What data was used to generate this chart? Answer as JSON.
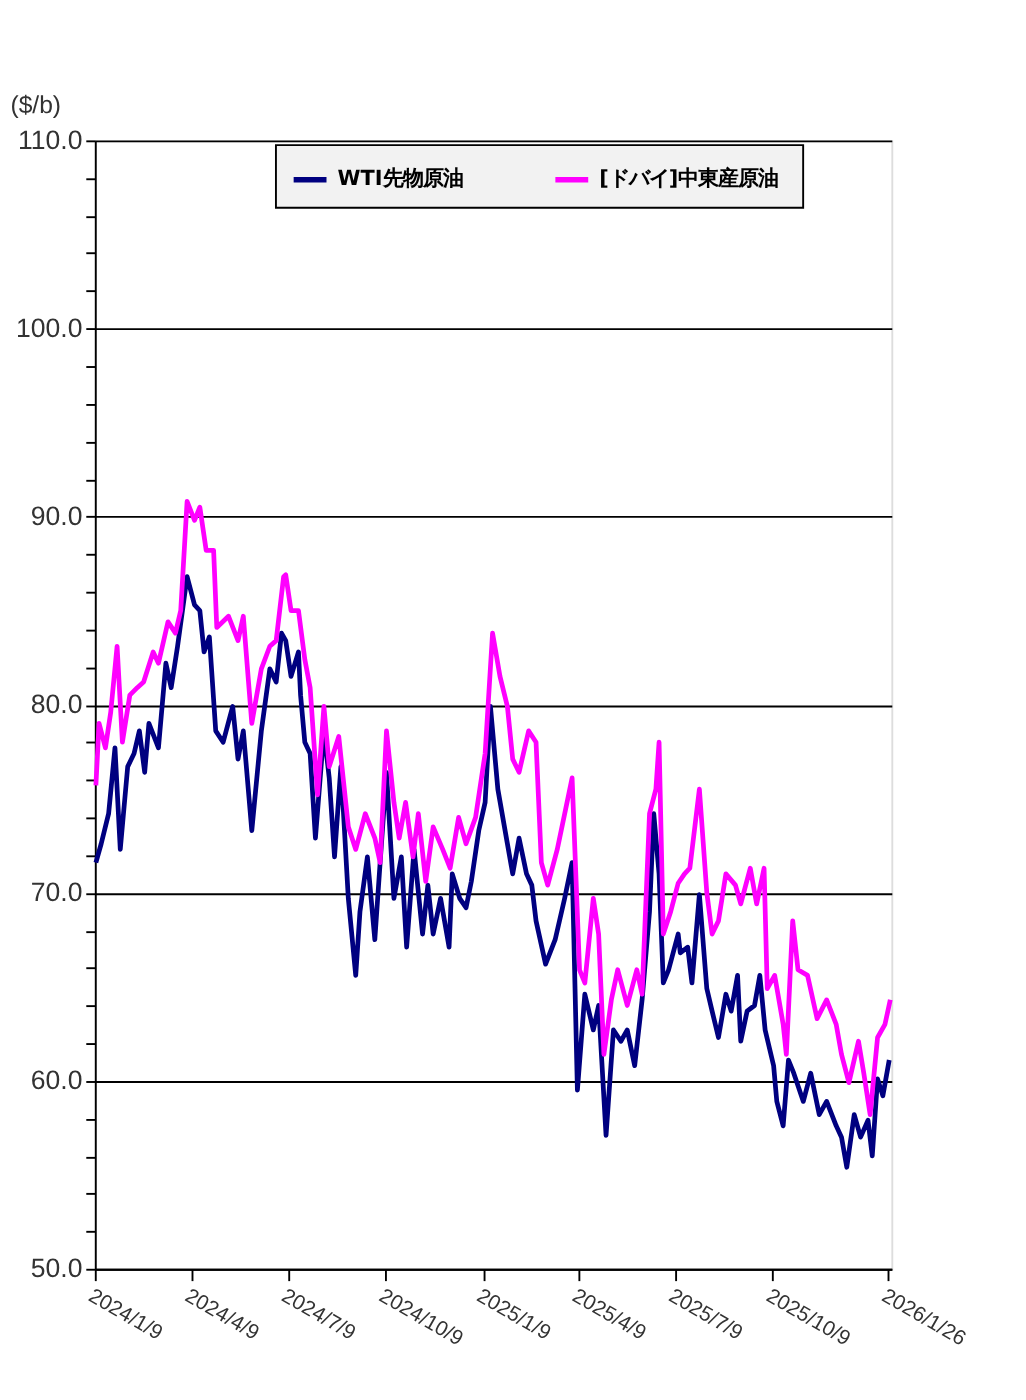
{
  "chart_data": {
    "type": "line",
    "ylabel": "($/b)",
    "legend": "top",
    "grid": "y",
    "marker": "none",
    "line_style": "solid",
    "ylim": [
      50,
      110
    ],
    "yticks": [
      {
        "value": 50,
        "label": "50.0"
      },
      {
        "value": 52,
        "label": null
      },
      {
        "value": 54,
        "label": null
      },
      {
        "value": 56,
        "label": null
      },
      {
        "value": 58,
        "label": null
      },
      {
        "value": 60,
        "label": "60.0"
      },
      {
        "value": 62,
        "label": null
      },
      {
        "value": 64,
        "label": null
      },
      {
        "value": 66,
        "label": null
      },
      {
        "value": 68,
        "label": null
      },
      {
        "value": 70,
        "label": "70.0"
      },
      {
        "value": 72,
        "label": null
      },
      {
        "value": 74,
        "label": null
      },
      {
        "value": 76,
        "label": null
      },
      {
        "value": 78,
        "label": null
      },
      {
        "value": 80,
        "label": "80.0"
      },
      {
        "value": 82,
        "label": null
      },
      {
        "value": 84,
        "label": null
      },
      {
        "value": 86,
        "label": null
      },
      {
        "value": 88,
        "label": null
      },
      {
        "value": 90,
        "label": "90.0"
      },
      {
        "value": 92,
        "label": null
      },
      {
        "value": 94,
        "label": null
      },
      {
        "value": 96,
        "label": null
      },
      {
        "value": 98,
        "label": null
      },
      {
        "value": 100,
        "label": "100.0"
      },
      {
        "value": 102,
        "label": null
      },
      {
        "value": 104,
        "label": null
      },
      {
        "value": 106,
        "label": null
      },
      {
        "value": 108,
        "label": null
      },
      {
        "value": 110,
        "label": "110.0"
      }
    ],
    "xlim": [
      "2024-01-09",
      "2026-01-29"
    ],
    "xticks": [
      {
        "value": "2024-01-09",
        "label": "2024/1/9"
      },
      {
        "value": "2024-04-09",
        "label": "2024/4/9"
      },
      {
        "value": "2024-07-09",
        "label": "2024/7/9"
      },
      {
        "value": "2024-10-09",
        "label": "2024/10/9"
      },
      {
        "value": "2025-01-09",
        "label": "2025/1/9"
      },
      {
        "value": "2025-04-09",
        "label": "2025/4/9"
      },
      {
        "value": "2025-07-09",
        "label": "2025/7/9"
      },
      {
        "value": "2025-10-09",
        "label": "2025/10/9"
      },
      {
        "value": "2026-01-26",
        "label": "2026/1/26"
      }
    ],
    "series": [
      {
        "name": "WTI先物原油",
        "color": "#000080",
        "x": [
          "2024-01-10",
          "2024-01-15",
          "2024-01-22",
          "2024-01-28",
          "2024-02-02",
          "2024-02-09",
          "2024-02-15",
          "2024-02-20",
          "2024-02-25",
          "2024-02-29",
          "2024-03-09",
          "2024-03-16",
          "2024-03-21",
          "2024-03-27",
          "2024-04-05",
          "2024-04-12",
          "2024-04-17",
          "2024-04-21",
          "2024-04-26",
          "2024-05-02",
          "2024-05-09",
          "2024-05-18",
          "2024-05-23",
          "2024-05-28",
          "2024-06-05",
          "2024-06-14",
          "2024-06-22",
          "2024-06-28",
          "2024-07-03",
          "2024-07-07",
          "2024-07-12",
          "2024-07-19",
          "2024-07-21",
          "2024-07-25",
          "2024-07-30",
          "2024-08-04",
          "2024-08-12",
          "2024-08-17",
          "2024-08-22",
          "2024-08-28",
          "2024-09-04",
          "2024-09-11",
          "2024-09-15",
          "2024-09-22",
          "2024-09-29",
          "2024-10-04",
          "2024-10-10",
          "2024-10-13",
          "2024-10-17",
          "2024-10-24",
          "2024-10-29",
          "2024-11-05",
          "2024-11-13",
          "2024-11-18",
          "2024-11-23",
          "2024-11-30",
          "2024-12-08",
          "2024-12-11",
          "2024-12-18",
          "2024-12-24",
          "2024-12-29",
          "2025-01-05",
          "2025-01-11",
          "2025-01-16",
          "2025-01-23",
          "2025-02-01",
          "2025-02-06",
          "2025-02-12",
          "2025-02-19",
          "2025-02-24",
          "2025-02-28",
          "2025-03-09",
          "2025-03-18",
          "2025-03-27",
          "2025-04-03",
          "2025-04-08",
          "2025-04-15",
          "2025-04-23",
          "2025-04-28",
          "2025-05-05",
          "2025-05-12",
          "2025-05-19",
          "2025-05-25",
          "2025-06-01",
          "2025-06-08",
          "2025-06-15",
          "2025-06-19",
          "2025-06-24",
          "2025-06-28",
          "2025-07-03",
          "2025-07-12",
          "2025-07-14",
          "2025-07-21",
          "2025-07-25",
          "2025-08-01",
          "2025-08-08",
          "2025-08-13",
          "2025-08-19",
          "2025-08-26",
          "2025-08-31",
          "2025-09-06",
          "2025-09-09",
          "2025-09-15",
          "2025-09-22",
          "2025-09-27",
          "2025-10-02",
          "2025-10-10",
          "2025-10-13",
          "2025-10-19",
          "2025-10-24",
          "2025-10-29",
          "2025-11-07",
          "2025-11-14",
          "2025-11-22",
          "2025-11-29",
          "2025-12-08",
          "2025-12-13",
          "2025-12-18",
          "2025-12-25",
          "2025-12-31",
          "2026-01-07",
          "2026-01-11",
          "2026-01-16",
          "2026-01-21",
          "2026-01-27"
        ],
        "values": [
          71.6,
          72.6,
          74.2,
          77.7,
          72.3,
          76.7,
          77.4,
          78.6,
          76.4,
          79.0,
          77.7,
          82.2,
          80.9,
          83.1,
          86.8,
          85.3,
          85.0,
          82.8,
          83.6,
          78.6,
          78.0,
          79.9,
          77.1,
          78.6,
          73.3,
          78.6,
          81.9,
          81.2,
          83.8,
          83.4,
          81.5,
          82.8,
          80.5,
          78.0,
          77.4,
          72.9,
          78.6,
          76.1,
          71.9,
          76.7,
          69.7,
          65.6,
          69.0,
          71.9,
          67.5,
          71.6,
          76.4,
          73.5,
          69.7,
          71.9,
          67.1,
          72.3,
          67.8,
          70.4,
          67.8,
          69.7,
          67.1,
          71.0,
          69.7,
          69.2,
          70.6,
          73.3,
          74.8,
          79.9,
          75.5,
          72.6,
          71.0,
          72.9,
          71.0,
          70.4,
          68.5,
          66.2,
          67.5,
          69.7,
          71.6,
          59.5,
          64.6,
          62.7,
          64.0,
          57.1,
          62.7,
          62.1,
          62.7,
          60.8,
          64.3,
          69.0,
          74.2,
          71.0,
          65.2,
          65.9,
          67.8,
          66.8,
          67.1,
          65.2,
          69.9,
          64.9,
          63.7,
          62.3,
          64.6,
          63.7,
          65.6,
          62.1,
          63.7,
          64.0,
          65.6,
          62.7,
          60.8,
          58.9,
          57.6,
          61.1,
          60.4,
          58.9,
          60.4,
          58.2,
          58.9,
          57.6,
          57.0,
          55.4,
          58.2,
          57.0,
          57.9,
          56.0,
          60.1,
          59.2,
          61.1
        ]
      },
      {
        "name": "[ドバイ]中東産原油",
        "color": "#ff00ff",
        "x": [
          "2024-01-10",
          "2024-01-13",
          "2024-01-19",
          "2024-01-24",
          "2024-01-30",
          "2024-02-04",
          "2024-02-11",
          "2024-02-18",
          "2024-02-24",
          "2024-03-04",
          "2024-03-09",
          "2024-03-18",
          "2024-03-25",
          "2024-03-30",
          "2024-04-05",
          "2024-04-12",
          "2024-04-17",
          "2024-04-23",
          "2024-04-30",
          "2024-05-03",
          "2024-05-14",
          "2024-05-23",
          "2024-05-28",
          "2024-06-05",
          "2024-06-14",
          "2024-06-22",
          "2024-06-28",
          "2024-07-05",
          "2024-07-07",
          "2024-07-12",
          "2024-07-19",
          "2024-07-25",
          "2024-07-30",
          "2024-08-06",
          "2024-08-12",
          "2024-08-17",
          "2024-08-26",
          "2024-09-04",
          "2024-09-11",
          "2024-09-20",
          "2024-09-29",
          "2024-10-04",
          "2024-10-10",
          "2024-10-17",
          "2024-10-22",
          "2024-10-28",
          "2024-11-04",
          "2024-11-09",
          "2024-11-16",
          "2024-11-23",
          "2024-12-02",
          "2024-12-09",
          "2024-12-17",
          "2024-12-24",
          "2025-01-02",
          "2025-01-11",
          "2025-01-18",
          "2025-01-25",
          "2025-02-01",
          "2025-02-06",
          "2025-02-12",
          "2025-02-21",
          "2025-02-28",
          "2025-03-05",
          "2025-03-11",
          "2025-03-20",
          "2025-03-27",
          "2025-04-03",
          "2025-04-10",
          "2025-04-15",
          "2025-04-23",
          "2025-04-28",
          "2025-05-03",
          "2025-05-10",
          "2025-05-16",
          "2025-05-25",
          "2025-06-03",
          "2025-06-08",
          "2025-06-15",
          "2025-06-21",
          "2025-06-24",
          "2025-06-28",
          "2025-07-05",
          "2025-07-12",
          "2025-07-18",
          "2025-07-23",
          "2025-08-01",
          "2025-08-08",
          "2025-08-13",
          "2025-08-19",
          "2025-08-26",
          "2025-09-04",
          "2025-09-09",
          "2025-09-18",
          "2025-09-24",
          "2025-10-01",
          "2025-10-04",
          "2025-10-11",
          "2025-10-19",
          "2025-10-22",
          "2025-10-28",
          "2025-11-02",
          "2025-11-11",
          "2025-11-20",
          "2025-11-29",
          "2025-12-08",
          "2025-12-13",
          "2025-12-20",
          "2025-12-29",
          "2026-01-03",
          "2026-01-09",
          "2026-01-16",
          "2026-01-23",
          "2026-01-28"
        ],
        "values": [
          75.7,
          79.0,
          77.7,
          79.6,
          83.1,
          78.0,
          80.5,
          80.9,
          81.2,
          82.8,
          82.2,
          84.4,
          83.8,
          85.0,
          90.8,
          89.8,
          90.5,
          88.2,
          88.2,
          84.1,
          84.7,
          83.4,
          84.7,
          79.0,
          81.9,
          83.1,
          83.4,
          86.8,
          86.9,
          85.0,
          85.0,
          82.4,
          80.9,
          75.2,
          79.9,
          76.7,
          78.3,
          73.5,
          72.3,
          74.2,
          72.9,
          71.6,
          78.6,
          74.8,
          72.9,
          74.8,
          71.9,
          74.2,
          70.6,
          73.5,
          72.3,
          71.3,
          74.0,
          72.6,
          74.0,
          77.4,
          83.8,
          81.5,
          79.9,
          77.1,
          76.4,
          78.6,
          78.0,
          71.6,
          70.4,
          72.3,
          74.2,
          76.1,
          65.9,
          65.2,
          69.7,
          67.8,
          61.4,
          64.3,
          65.9,
          64.0,
          65.9,
          64.6,
          74.2,
          75.5,
          78.0,
          67.8,
          69.0,
          70.5,
          71.0,
          71.3,
          75.5,
          70.0,
          67.8,
          68.5,
          71.0,
          70.4,
          69.4,
          71.3,
          69.4,
          71.3,
          64.9,
          65.6,
          63.0,
          61.4,
          68.5,
          65.9,
          65.6,
          63.3,
          64.3,
          63.0,
          61.4,
          59.9,
          62.1,
          60.4,
          58.2,
          62.3,
          63.0,
          64.3
        ]
      }
    ]
  }
}
